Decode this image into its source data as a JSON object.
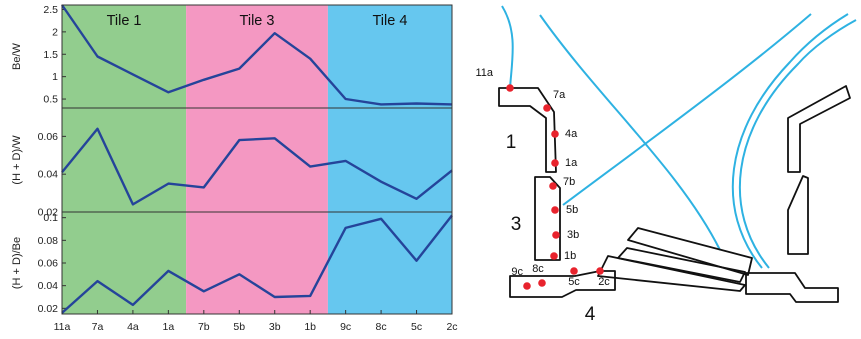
{
  "chart_data": [
    {
      "type": "line",
      "categories": [
        "11a",
        "7a",
        "4a",
        "1a",
        "7b",
        "5b",
        "3b",
        "1b",
        "9c",
        "8c",
        "5c",
        "2c"
      ],
      "ylabel": "Be/W",
      "ylim": [
        0.3,
        2.6
      ],
      "yticks": [
        0.5,
        1,
        1.5,
        2,
        2.5
      ],
      "yticklabels": [
        "0.5",
        "1",
        "1.5",
        "2",
        "2.5"
      ],
      "series": [
        {
          "values": [
            2.6,
            1.45,
            1.05,
            0.65,
            0.93,
            1.18,
            1.97,
            1.4,
            0.5,
            0.38,
            0.4,
            0.38
          ]
        }
      ]
    },
    {
      "type": "line",
      "categories": [
        "11a",
        "7a",
        "4a",
        "1a",
        "7b",
        "5b",
        "3b",
        "1b",
        "9c",
        "8c",
        "5c",
        "2c"
      ],
      "ylabel": "(H + D)/W",
      "ylim": [
        0.02,
        0.075
      ],
      "yticks": [
        0.02,
        0.04,
        0.06
      ],
      "yticklabels": [
        "0.02",
        "0.04",
        "0.06"
      ],
      "series": [
        {
          "values": [
            0.041,
            0.064,
            0.024,
            0.035,
            0.033,
            0.058,
            0.059,
            0.044,
            0.047,
            0.036,
            0.027,
            0.042
          ]
        }
      ]
    },
    {
      "type": "line",
      "categories": [
        "11a",
        "7a",
        "4a",
        "1a",
        "7b",
        "5b",
        "3b",
        "1b",
        "9c",
        "8c",
        "5c",
        "2c"
      ],
      "ylabel": "(H + D)/Be",
      "ylim": [
        0.015,
        0.105
      ],
      "yticks": [
        0.02,
        0.04,
        0.06,
        0.08,
        0.1
      ],
      "yticklabels": [
        "0.02",
        "0.04",
        "0.06",
        "0.08",
        "0.1"
      ],
      "series": [
        {
          "values": [
            0.016,
            0.044,
            0.023,
            0.053,
            0.035,
            0.05,
            0.03,
            0.031,
            0.091,
            0.099,
            0.062,
            0.102
          ]
        }
      ]
    }
  ],
  "tiles": [
    {
      "label": "Tile 1",
      "from": 0,
      "to": 3.5,
      "color": "#92cd8e"
    },
    {
      "label": "Tile 3",
      "from": 3.5,
      "to": 7.5,
      "color": "#f498c2"
    },
    {
      "label": "Tile 4",
      "from": 7.5,
      "to": 11,
      "color": "#66c7ef"
    }
  ],
  "line_color": "#25449a",
  "diagram": {
    "tile_labels": [
      "1",
      "3",
      "4"
    ],
    "points": [
      "11a",
      "7a",
      "4a",
      "1a",
      "7b",
      "5b",
      "3b",
      "1b",
      "9c",
      "8c",
      "5c",
      "2c"
    ],
    "point_color": "#e8232d",
    "field_line_color": "#2eb2e2",
    "outline_color": "#111111"
  }
}
